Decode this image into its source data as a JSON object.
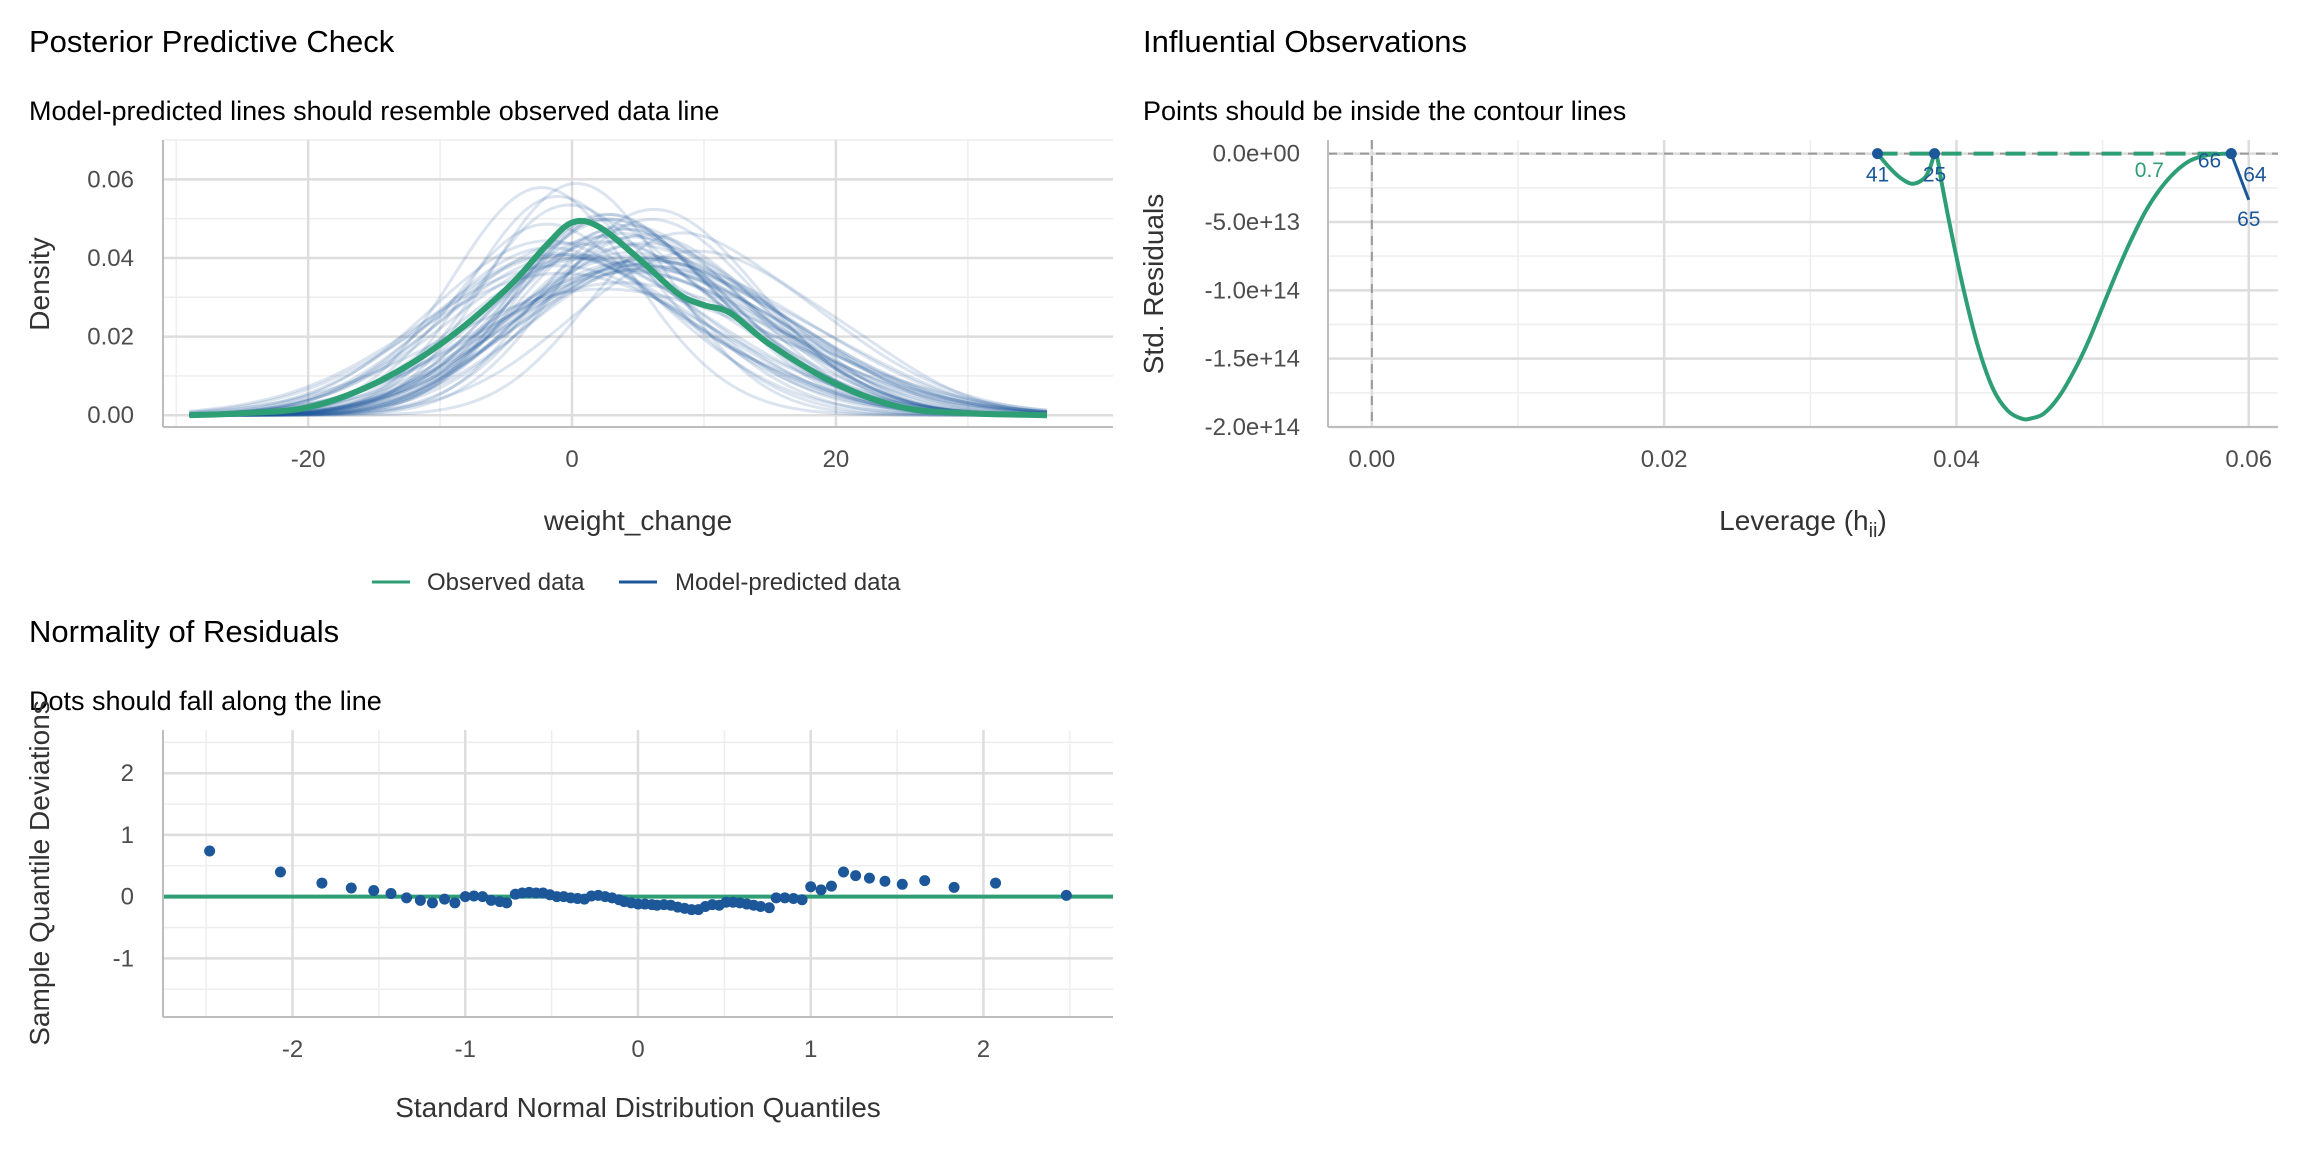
{
  "colors": {
    "observed": "#2e9e74",
    "predicted": "#1c5799",
    "grid_major": "#dddddd",
    "grid_minor": "#eeeeee",
    "axis": "#bdbdbd",
    "reference": "#999999"
  },
  "chart_data": [
    {
      "id": "ppc",
      "type": "line",
      "title": "Posterior Predictive Check",
      "subtitle": "Model-predicted lines should resemble observed data line",
      "xlabel": "weight_change",
      "ylabel": "Density",
      "xlim": [
        -31,
        41
      ],
      "ylim": [
        -0.003,
        0.07
      ],
      "x_ticks": [
        -20,
        0,
        20
      ],
      "x_tick_labels": [
        "-20",
        "0",
        "20"
      ],
      "y_ticks": [
        0.0,
        0.02,
        0.04,
        0.06
      ],
      "y_tick_labels": [
        "0.00",
        "0.02",
        "0.04",
        "0.06"
      ],
      "legend": [
        "Observed data",
        "Model-predicted data"
      ],
      "observed_series": {
        "name": "Observed data",
        "x": [
          -29,
          -25,
          -20,
          -15,
          -10,
          -5,
          -2,
          0,
          2,
          5,
          8,
          10,
          12,
          15,
          20,
          25,
          30,
          36
        ],
        "y": [
          0.0,
          0.0005,
          0.002,
          0.008,
          0.018,
          0.032,
          0.043,
          0.049,
          0.048,
          0.04,
          0.031,
          0.028,
          0.026,
          0.018,
          0.008,
          0.002,
          0.0005,
          0.0
        ]
      },
      "predicted_series_summary": {
        "name": "Model-predicted data",
        "count": 50,
        "peak_density_range": [
          0.038,
          0.065
        ],
        "peak_location_range": [
          -4,
          8
        ],
        "x_range": [
          -29,
          36
        ]
      }
    },
    {
      "id": "influence",
      "type": "scatter",
      "title": "Influential Observations",
      "subtitle": "Points should be inside the contour lines",
      "xlabel": "Leverage (h",
      "xlabel_subscript": "ii",
      "xlabel_close": ")",
      "ylabel": "Std. Residuals",
      "xlim": [
        -0.003,
        0.062
      ],
      "ylim": [
        -200000000000000.0,
        10000000000000.0
      ],
      "x_ticks": [
        0.0,
        0.02,
        0.04,
        0.06
      ],
      "x_tick_labels": [
        "0.00",
        "0.02",
        "0.04",
        "0.06"
      ],
      "y_ticks": [
        0,
        -50000000000000.0,
        -100000000000000.0,
        -150000000000000.0,
        -200000000000000.0
      ],
      "y_tick_labels": [
        "0.0e+00",
        "-5.0e+13",
        "-1.0e+14",
        "-1.5e+14",
        "-2.0e+14"
      ],
      "contour_label": "0.7",
      "contour_label_pos": [
        0.0532,
        -12000000000000.0
      ],
      "cook_curve": {
        "x": [
          0.0346,
          0.0354,
          0.0362,
          0.037,
          0.0378,
          0.0382,
          0.0386,
          0.039,
          0.0396,
          0.0405,
          0.0415,
          0.0425,
          0.0435,
          0.0445,
          0.0452,
          0.046,
          0.047,
          0.048,
          0.049,
          0.05,
          0.051,
          0.052,
          0.053,
          0.054,
          0.055,
          0.056,
          0.057,
          0.058,
          0.0588
        ],
        "y": [
          0,
          -10000000000000.0,
          -18000000000000.0,
          -22000000000000.0,
          -18000000000000.0,
          -10000000000000.0,
          0,
          -22000000000000.0,
          -55000000000000.0,
          -100000000000000.0,
          -142000000000000.0,
          -172000000000000.0,
          -188000000000000.0,
          -194000000000000.0,
          -193500000000000.0,
          -190000000000000.0,
          -178000000000000.0,
          -160000000000000.0,
          -138000000000000.0,
          -112000000000000.0,
          -86000000000000.0,
          -62000000000000.0,
          -41000000000000.0,
          -25000000000000.0,
          -13000000000000.0,
          -5000000000000.0,
          -1500000000000.0,
          -200000000000.0,
          0
        ]
      },
      "points": [
        {
          "x": 0.0346,
          "y": 0,
          "label": "41"
        },
        {
          "x": 0.0385,
          "y": 0,
          "label": "25"
        },
        {
          "x": 0.0588,
          "y": 0,
          "label": "66"
        },
        {
          "x": 0.0588,
          "y": 0,
          "label": "64"
        }
      ],
      "extra_label": {
        "text": "65",
        "x": 0.06,
        "y": -47000000000000.0
      }
    },
    {
      "id": "qq",
      "type": "scatter",
      "title": "Normality of Residuals",
      "subtitle": "Dots should fall along the line",
      "xlabel": "Standard Normal Distribution Quantiles",
      "ylabel": "Sample Quantile Deviations",
      "xlim": [
        -2.75,
        2.75
      ],
      "ylim": [
        -1.95,
        2.7
      ],
      "x_ticks": [
        -2,
        -1,
        0,
        1,
        2
      ],
      "x_tick_labels": [
        "-2",
        "-1",
        "0",
        "1",
        "2"
      ],
      "y_ticks": [
        -1,
        0,
        1,
        2
      ],
      "y_tick_labels": [
        "-1",
        "0",
        "1",
        "2"
      ],
      "reference_line": 0,
      "points": [
        [
          -2.48,
          0.74
        ],
        [
          -2.07,
          0.4
        ],
        [
          -1.83,
          0.22
        ],
        [
          -1.66,
          0.14
        ],
        [
          -1.53,
          0.1
        ],
        [
          -1.43,
          0.05
        ],
        [
          -1.34,
          -0.02
        ],
        [
          -1.26,
          -0.06
        ],
        [
          -1.19,
          -0.1
        ],
        [
          -1.12,
          -0.04
        ],
        [
          -1.06,
          -0.1
        ],
        [
          -1.0,
          0.0
        ],
        [
          -0.95,
          0.01
        ],
        [
          -0.9,
          0.0
        ],
        [
          -0.85,
          -0.06
        ],
        [
          -0.8,
          -0.08
        ],
        [
          -0.76,
          -0.1
        ],
        [
          -0.71,
          0.04
        ],
        [
          -0.67,
          0.06
        ],
        [
          -0.63,
          0.07
        ],
        [
          -0.59,
          0.06
        ],
        [
          -0.55,
          0.06
        ],
        [
          -0.51,
          0.03
        ],
        [
          -0.47,
          0.0
        ],
        [
          -0.43,
          0.0
        ],
        [
          -0.39,
          -0.02
        ],
        [
          -0.35,
          -0.03
        ],
        [
          -0.31,
          -0.04
        ],
        [
          -0.27,
          0.01
        ],
        [
          -0.23,
          0.02
        ],
        [
          -0.19,
          0.0
        ],
        [
          -0.15,
          -0.02
        ],
        [
          -0.11,
          -0.05
        ],
        [
          -0.08,
          -0.08
        ],
        [
          -0.04,
          -0.1
        ],
        [
          0.0,
          -0.12
        ],
        [
          0.04,
          -0.12
        ],
        [
          0.08,
          -0.13
        ],
        [
          0.11,
          -0.14
        ],
        [
          0.15,
          -0.13
        ],
        [
          0.19,
          -0.14
        ],
        [
          0.23,
          -0.17
        ],
        [
          0.27,
          -0.19
        ],
        [
          0.31,
          -0.21
        ],
        [
          0.35,
          -0.21
        ],
        [
          0.39,
          -0.16
        ],
        [
          0.43,
          -0.13
        ],
        [
          0.47,
          -0.14
        ],
        [
          0.51,
          -0.09
        ],
        [
          0.55,
          -0.09
        ],
        [
          0.59,
          -0.1
        ],
        [
          0.63,
          -0.12
        ],
        [
          0.67,
          -0.14
        ],
        [
          0.71,
          -0.16
        ],
        [
          0.76,
          -0.18
        ],
        [
          0.8,
          -0.02
        ],
        [
          0.85,
          -0.02
        ],
        [
          0.9,
          -0.03
        ],
        [
          0.95,
          -0.05
        ],
        [
          1.0,
          0.16
        ],
        [
          1.06,
          0.11
        ],
        [
          1.12,
          0.17
        ],
        [
          1.19,
          0.4
        ],
        [
          1.26,
          0.34
        ],
        [
          1.34,
          0.3
        ],
        [
          1.43,
          0.25
        ],
        [
          1.53,
          0.2
        ],
        [
          1.66,
          0.26
        ],
        [
          1.83,
          0.15
        ],
        [
          2.07,
          0.22
        ],
        [
          2.48,
          0.02
        ]
      ]
    }
  ]
}
